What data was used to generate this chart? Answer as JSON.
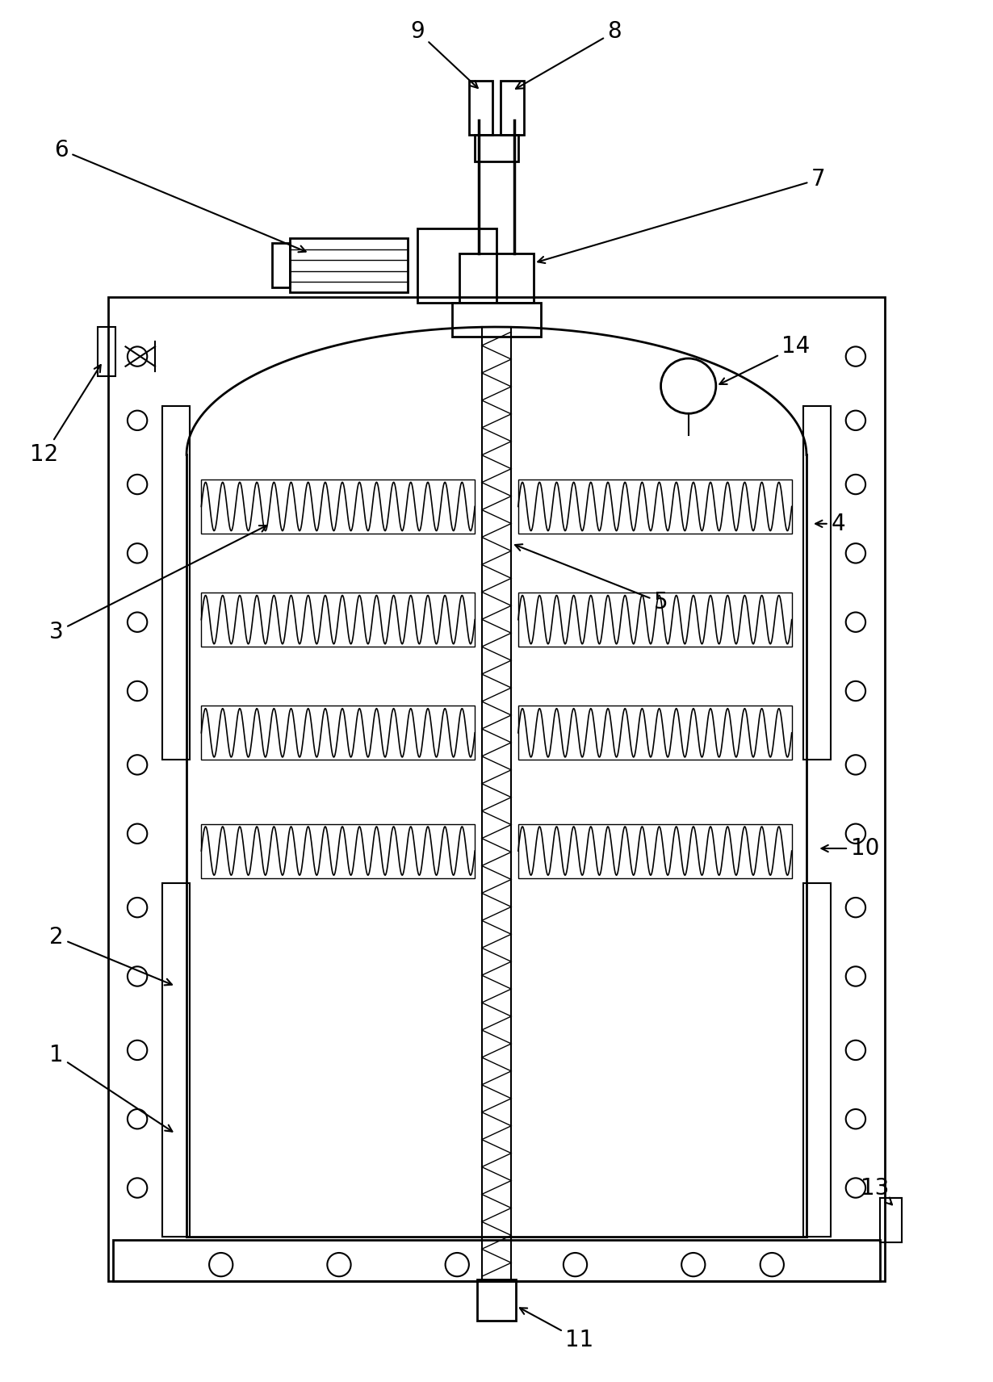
{
  "bg_color": "#ffffff",
  "line_color": "#000000",
  "fig_width": 12.3,
  "fig_height": 17.12,
  "lw": 1.5,
  "lw2": 2.0
}
